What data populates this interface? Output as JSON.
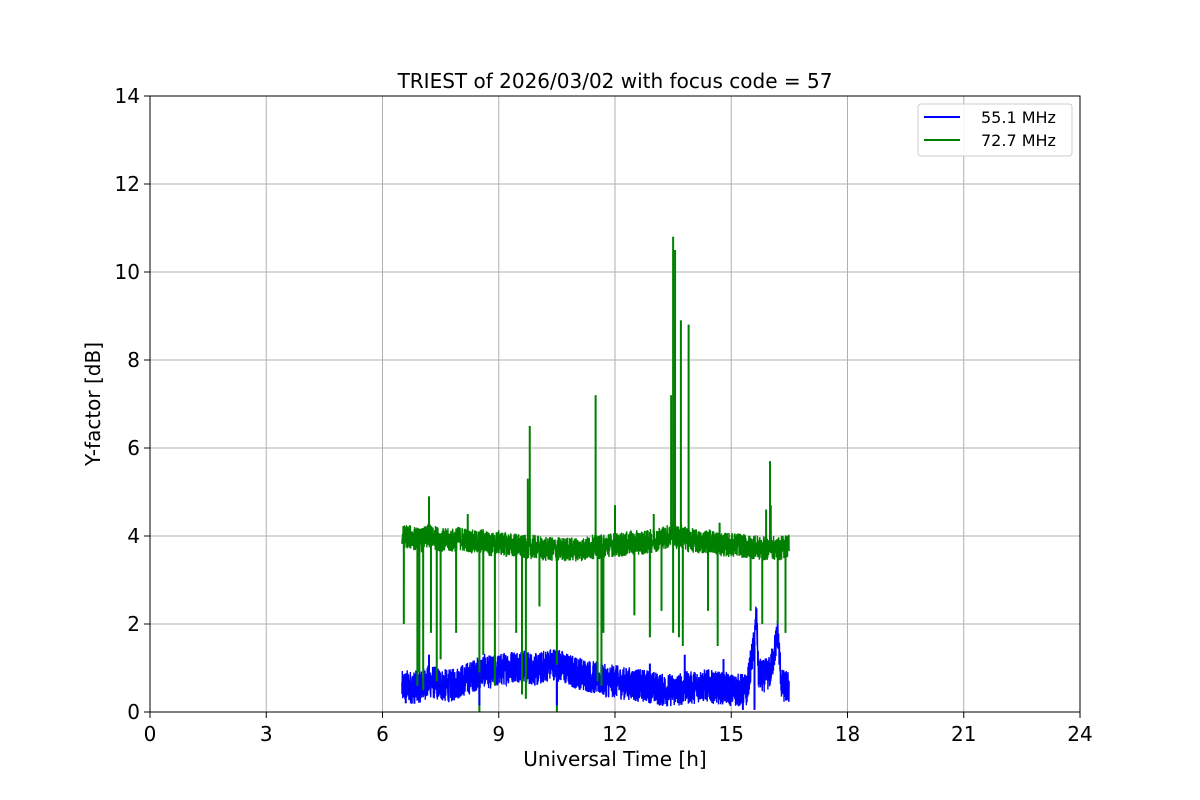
{
  "chart_data": {
    "type": "line",
    "title": "TRIEST of 2026/03/02 with focus code = 57",
    "xlabel": "Universal Time [h]",
    "ylabel": "Y-factor [dB]",
    "xlim": [
      0,
      24
    ],
    "ylim": [
      0,
      14
    ],
    "xticks": [
      0,
      3,
      6,
      9,
      12,
      15,
      18,
      21,
      24
    ],
    "yticks": [
      0,
      2,
      4,
      6,
      8,
      10,
      12,
      14
    ],
    "grid": true,
    "legend_position": "top-right",
    "series": [
      {
        "name": "55.1 MHz",
        "color": "#0000ff",
        "x": [
          6.5,
          6.6,
          6.8,
          7.0,
          7.2,
          7.4,
          7.6,
          7.8,
          8.0,
          8.2,
          8.4,
          8.6,
          8.8,
          9.0,
          9.2,
          9.4,
          9.6,
          9.8,
          10.0,
          10.2,
          10.4,
          10.6,
          10.8,
          11.0,
          11.2,
          11.4,
          11.6,
          11.8,
          12.0,
          12.2,
          12.4,
          12.6,
          12.8,
          13.0,
          13.2,
          13.4,
          13.6,
          13.8,
          14.0,
          14.2,
          14.4,
          14.6,
          14.8,
          15.0,
          15.2,
          15.4,
          15.6,
          15.65,
          15.7,
          15.8,
          16.0,
          16.1,
          16.2,
          16.3,
          16.5
        ],
        "y": [
          0.55,
          0.6,
          0.55,
          0.6,
          0.7,
          0.65,
          0.6,
          0.6,
          0.7,
          0.75,
          0.85,
          0.95,
          0.9,
          0.95,
          1.0,
          1.05,
          1.05,
          1.0,
          0.95,
          1.05,
          1.1,
          1.05,
          0.95,
          0.9,
          0.85,
          0.8,
          0.75,
          0.7,
          0.7,
          0.65,
          0.65,
          0.6,
          0.6,
          0.55,
          0.5,
          0.5,
          0.5,
          0.55,
          0.55,
          0.6,
          0.6,
          0.55,
          0.55,
          0.5,
          0.5,
          0.5,
          1.6,
          2.3,
          0.9,
          0.8,
          0.9,
          1.3,
          1.8,
          0.6,
          0.55
        ]
      },
      {
        "name": "72.7 MHz",
        "color": "#008000",
        "x": [
          6.5,
          6.6,
          6.8,
          7.0,
          7.2,
          7.4,
          7.6,
          7.8,
          8.0,
          8.2,
          8.4,
          8.6,
          8.8,
          9.0,
          9.2,
          9.4,
          9.6,
          9.8,
          10.0,
          10.2,
          10.4,
          10.6,
          10.8,
          11.0,
          11.2,
          11.4,
          11.5,
          11.6,
          11.8,
          12.0,
          12.2,
          12.4,
          12.6,
          12.8,
          13.0,
          13.2,
          13.4,
          13.5,
          13.55,
          13.6,
          13.7,
          13.8,
          13.9,
          14.0,
          14.2,
          14.4,
          14.6,
          14.8,
          15.0,
          15.2,
          15.4,
          15.6,
          15.8,
          16.0,
          16.2,
          16.5
        ],
        "y": [
          3.95,
          4.0,
          3.95,
          3.9,
          4.0,
          3.95,
          3.9,
          3.9,
          3.95,
          3.9,
          3.85,
          3.9,
          3.8,
          3.85,
          3.8,
          3.8,
          3.75,
          3.75,
          3.75,
          3.7,
          3.7,
          3.7,
          3.7,
          3.7,
          3.7,
          3.75,
          3.75,
          3.75,
          3.8,
          3.8,
          3.8,
          3.85,
          3.85,
          3.85,
          3.9,
          3.95,
          4.0,
          4.1,
          4.0,
          3.95,
          4.0,
          3.95,
          3.9,
          3.9,
          3.85,
          3.9,
          3.85,
          3.8,
          3.8,
          3.8,
          3.75,
          3.75,
          3.7,
          3.75,
          3.7,
          3.8
        ]
      }
    ],
    "green_spikes_up": [
      [
        7.2,
        4.9
      ],
      [
        8.2,
        4.5
      ],
      [
        9.8,
        6.5
      ],
      [
        9.75,
        5.3
      ],
      [
        11.5,
        7.2
      ],
      [
        12.0,
        4.7
      ],
      [
        13.0,
        4.5
      ],
      [
        13.5,
        10.8
      ],
      [
        13.45,
        7.2
      ],
      [
        13.55,
        10.5
      ],
      [
        13.7,
        8.9
      ],
      [
        13.9,
        8.8
      ],
      [
        14.7,
        4.3
      ],
      [
        15.9,
        4.6
      ],
      [
        16.0,
        5.7
      ],
      [
        16.02,
        4.7
      ]
    ],
    "green_spikes_down": [
      [
        6.55,
        2.0
      ],
      [
        6.9,
        0.6
      ],
      [
        6.95,
        0.9
      ],
      [
        7.05,
        0.5
      ],
      [
        7.25,
        1.8
      ],
      [
        7.4,
        0.7
      ],
      [
        7.5,
        1.2
      ],
      [
        7.9,
        1.8
      ],
      [
        8.5,
        0.0
      ],
      [
        8.6,
        1.3
      ],
      [
        8.9,
        0.6
      ],
      [
        9.45,
        1.8
      ],
      [
        9.6,
        0.4
      ],
      [
        9.7,
        0.3
      ],
      [
        10.05,
        2.4
      ],
      [
        10.5,
        0.0
      ],
      [
        11.55,
        0.7
      ],
      [
        11.65,
        0.6
      ],
      [
        11.7,
        1.8
      ],
      [
        12.5,
        2.2
      ],
      [
        12.9,
        1.7
      ],
      [
        13.2,
        2.3
      ],
      [
        13.5,
        1.8
      ],
      [
        13.65,
        1.7
      ],
      [
        13.75,
        1.5
      ],
      [
        14.4,
        2.3
      ],
      [
        14.65,
        1.5
      ],
      [
        15.5,
        2.3
      ],
      [
        15.8,
        2.0
      ],
      [
        16.2,
        2.0
      ],
      [
        16.4,
        1.8
      ]
    ],
    "blue_spikes": [
      [
        6.6,
        0.2
      ],
      [
        7.2,
        1.3
      ],
      [
        8.5,
        0.15
      ],
      [
        10.5,
        0.15
      ],
      [
        12.9,
        1.1
      ],
      [
        13.8,
        1.3
      ],
      [
        14.8,
        1.2
      ],
      [
        15.3,
        0.05
      ],
      [
        15.6,
        0.05
      ],
      [
        15.65,
        2.3
      ]
    ]
  }
}
